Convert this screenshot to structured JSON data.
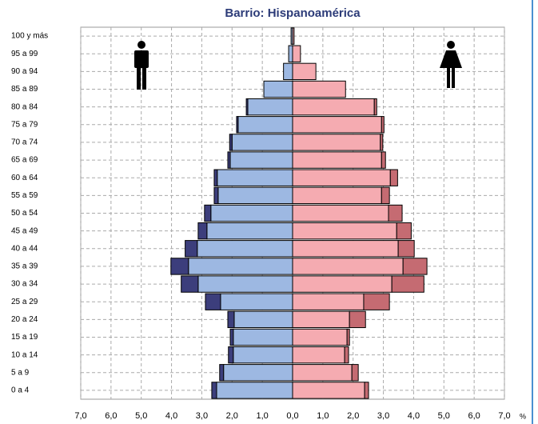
{
  "chart_data": {
    "type": "pyramid",
    "title": "Barrio: Hispanoamérica",
    "x_unit": "%",
    "categories": [
      "100 y más",
      "95 a 99",
      "90 a 94",
      "85 a 89",
      "80 a 84",
      "75 a 79",
      "70 a 74",
      "65 a 69",
      "60 a 64",
      "55 a 59",
      "50 a 54",
      "45 a 49",
      "40 a 44",
      "35 a 39",
      "30 a 34",
      "25 a 29",
      "20 a 24",
      "15 a 19",
      "10 a 14",
      "5 a 9",
      "0 a 4"
    ],
    "series": [
      {
        "color": "#9db8e2",
        "values": [
          -0.05,
          -0.13,
          -0.3,
          -0.95,
          -1.48,
          -1.8,
          -2.0,
          -2.06,
          -2.49,
          -2.46,
          -2.7,
          -2.83,
          -3.15,
          -3.44,
          -3.12,
          -2.38,
          -1.93,
          -1.96,
          -1.96,
          -2.28,
          -2.51
        ]
      },
      {
        "color": "#3c3e7c",
        "values": [
          0,
          0,
          0,
          0,
          -0.05,
          -0.05,
          -0.08,
          -0.08,
          -0.1,
          -0.13,
          -0.21,
          -0.29,
          -0.4,
          -0.58,
          -0.56,
          -0.5,
          -0.21,
          -0.1,
          -0.16,
          -0.13,
          -0.16
        ]
      },
      {
        "color": "#f5abb1",
        "values": [
          0.05,
          0.26,
          0.77,
          1.75,
          2.7,
          2.94,
          2.9,
          2.94,
          3.23,
          2.94,
          3.17,
          3.44,
          3.49,
          3.65,
          3.28,
          2.35,
          1.88,
          1.8,
          1.72,
          1.96,
          2.38
        ]
      },
      {
        "color": "#c56b72",
        "values": [
          0,
          0,
          0,
          0,
          0.08,
          0.08,
          0.08,
          0.13,
          0.24,
          0.26,
          0.45,
          0.48,
          0.53,
          0.79,
          1.06,
          0.85,
          0.53,
          0.08,
          0.13,
          0.21,
          0.13
        ]
      }
    ],
    "xlim": [
      -7,
      7
    ],
    "xticks": [
      {
        "value": -7,
        "label": "7,0"
      },
      {
        "value": -6,
        "label": "6,0"
      },
      {
        "value": -5,
        "label": "5,0"
      },
      {
        "value": -4,
        "label": "4,0"
      },
      {
        "value": -3,
        "label": "3,0"
      },
      {
        "value": -2,
        "label": "2,0"
      },
      {
        "value": -1,
        "label": "1,0"
      },
      {
        "value": 0,
        "label": "0,0"
      },
      {
        "value": 1,
        "label": "1,0"
      },
      {
        "value": 2,
        "label": "2,0"
      },
      {
        "value": 3,
        "label": "3,0"
      },
      {
        "value": 4,
        "label": "4,0"
      },
      {
        "value": 5,
        "label": "5,0"
      },
      {
        "value": 6,
        "label": "6,0"
      },
      {
        "value": 7,
        "label": "7,0"
      }
    ],
    "grid": true
  }
}
